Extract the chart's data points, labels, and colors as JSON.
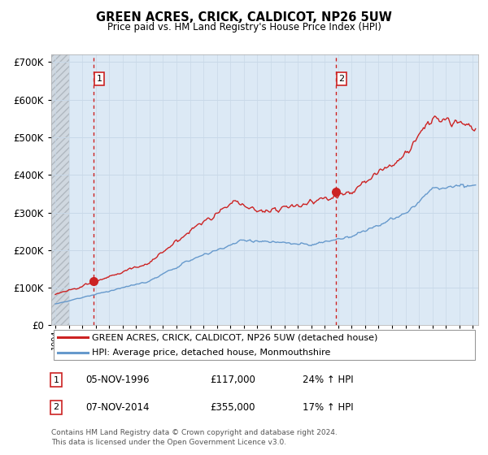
{
  "title": "GREEN ACRES, CRICK, CALDICOT, NP26 5UW",
  "subtitle": "Price paid vs. HM Land Registry's House Price Index (HPI)",
  "ylim": [
    0,
    720000
  ],
  "xlim_start": 1993.7,
  "xlim_end": 2025.4,
  "hpi_color": "#6699cc",
  "price_color": "#cc2222",
  "marker_color": "#cc2222",
  "sale1_x": 1996.85,
  "sale1_y": 117000,
  "sale2_x": 2014.85,
  "sale2_y": 355000,
  "legend_label1": "GREEN ACRES, CRICK, CALDICOT, NP26 5UW (detached house)",
  "legend_label2": "HPI: Average price, detached house, Monmouthshire",
  "table_row1": [
    "1",
    "05-NOV-1996",
    "£117,000",
    "24% ↑ HPI"
  ],
  "table_row2": [
    "2",
    "07-NOV-2014",
    "£355,000",
    "17% ↑ HPI"
  ],
  "footnote": "Contains HM Land Registry data © Crown copyright and database right 2024.\nThis data is licensed under the Open Government Licence v3.0.",
  "bg_color": "#dce9f5",
  "grid_color": "#c8d8e8",
  "dashed_vline_color": "#cc2222",
  "hatch_color": "#b0b8c0",
  "hatch_bg": "#d0d8e0"
}
